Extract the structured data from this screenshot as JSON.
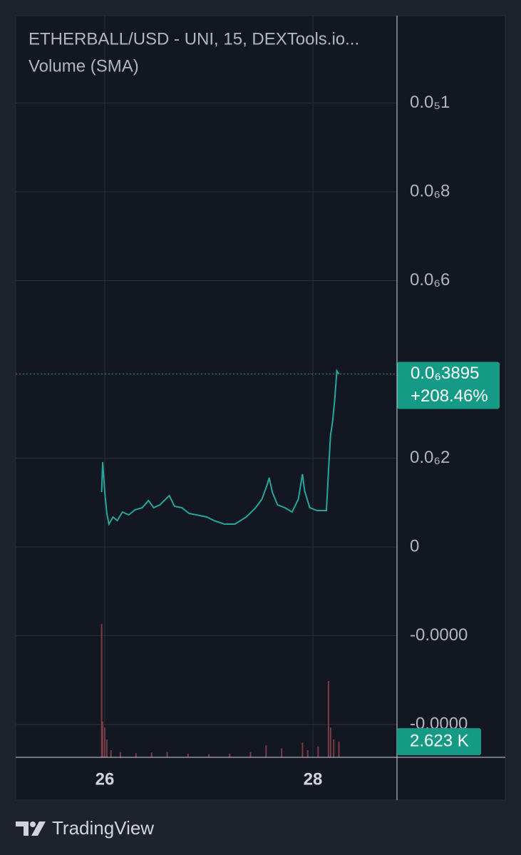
{
  "chart_data": {
    "type": "line",
    "title": "ETHERBALL/USD - UNI, 15, DEXTools.io...",
    "subtitle": "Volume (SMA)",
    "x": [
      25.97,
      25.98,
      26.0,
      26.02,
      26.04,
      26.08,
      26.12,
      26.17,
      26.23,
      26.29,
      26.36,
      26.42,
      26.47,
      26.53,
      26.62,
      26.67,
      26.74,
      26.81,
      26.88,
      26.98,
      27.05,
      27.15,
      27.25,
      27.36,
      27.45,
      27.51,
      27.56,
      27.58,
      27.61,
      27.66,
      27.73,
      27.8,
      27.86,
      27.9,
      27.92,
      27.97,
      28.04,
      28.13,
      28.15,
      28.17,
      28.19,
      28.21,
      28.23,
      28.25
    ],
    "values": [
      1.237e-07,
      1.912e-07,
      1.237e-07,
      7.55e-08,
      5.14e-08,
      6.75e-08,
      5.94e-08,
      7.87e-08,
      7.23e-08,
      8.35e-08,
      8.84e-08,
      1.044e-07,
      8.84e-08,
      9.48e-08,
      1.157e-07,
      9.16e-08,
      8.84e-08,
      7.55e-08,
      7.23e-08,
      6.75e-08,
      5.94e-08,
      5.14e-08,
      5.14e-08,
      6.75e-08,
      8.84e-08,
      1.076e-07,
      1.398e-07,
      1.558e-07,
      1.237e-07,
      9.48e-08,
      8.84e-08,
      7.87e-08,
      1.076e-07,
      1.639e-07,
      1.269e-07,
      8.84e-08,
      8.19e-08,
      8.19e-08,
      1.719e-07,
      2.522e-07,
      2.843e-07,
      3.325e-07,
      3.968e-07,
      3.895e-07
    ],
    "color": "#26a69a",
    "xlim": [
      25.144,
      28.808
    ],
    "xticks": [
      26,
      28
    ],
    "ylim": [
      -4.739e-07,
      1.1968e-06
    ],
    "yticks": [
      {
        "value": 1e-06,
        "label": "0.0₅1"
      },
      {
        "value": 8e-07,
        "label": "0.0₆8"
      },
      {
        "value": 6e-07,
        "label": "0.0₆6"
      },
      {
        "value": 2e-07,
        "label": "0.0₆2"
      },
      0,
      {
        "value": -2e-07,
        "label": "-0.0000"
      },
      {
        "value": -4e-07,
        "label": "-0.0000"
      }
    ],
    "grid": true,
    "last_price": {
      "value": 3.895e-07,
      "label": "0.0₆3895",
      "change": "+208.46%",
      "color": "#159a85"
    },
    "volume": {
      "x": [
        25.97,
        25.98,
        26.0,
        26.02,
        26.06,
        26.15,
        26.3,
        26.45,
        26.6,
        26.8,
        27.0,
        27.2,
        27.4,
        27.55,
        27.7,
        27.9,
        27.95,
        28.05,
        28.15,
        28.17,
        28.2,
        28.25
      ],
      "values": [
        22440,
        6000,
        5000,
        3000,
        1200,
        900,
        700,
        800,
        900,
        600,
        500,
        600,
        900,
        2000,
        1500,
        2500,
        1200,
        1800,
        12840,
        5000,
        3000,
        2623
      ],
      "color": "#7a3b45",
      "ylim": [
        0,
        30000
      ]
    },
    "last_volume": {
      "value": 2623,
      "label": "2.623 K"
    }
  },
  "footer": {
    "brand": "TradingView"
  }
}
